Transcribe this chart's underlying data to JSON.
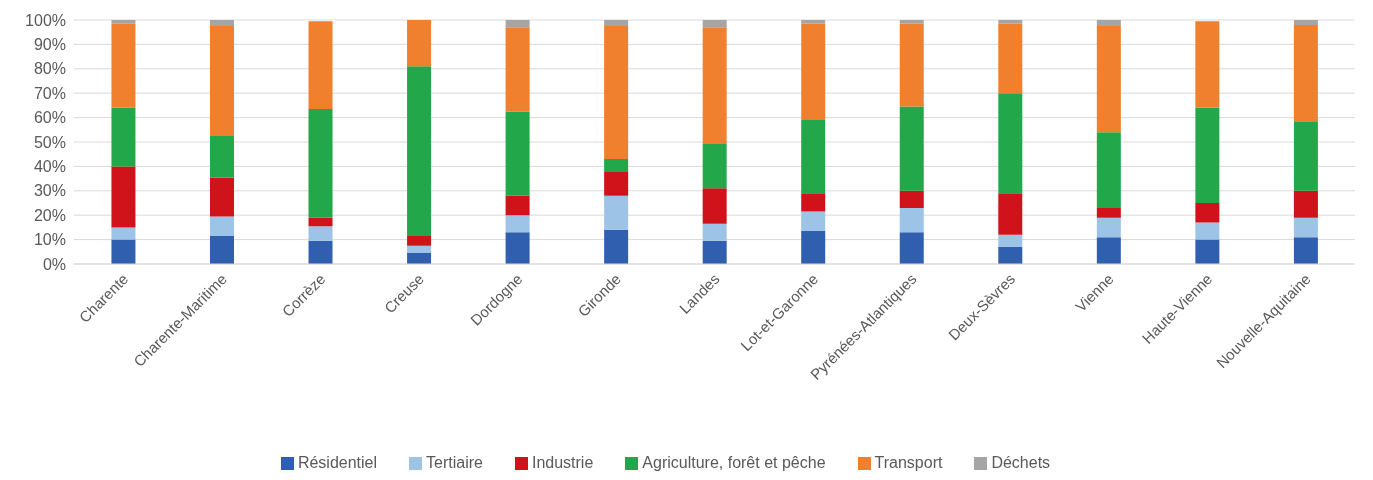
{
  "chart_data": {
    "type": "bar",
    "stacked": true,
    "categories": [
      "Charente",
      "Charente-Maritime",
      "Corrèze",
      "Creuse",
      "Dordogne",
      "Gironde",
      "Landes",
      "Lot-et-Garonne",
      "Pyrénées-Atlantiques",
      "Deux-Sèvres",
      "Vienne",
      "Haute-Vienne",
      "Nouvelle-Aquitaine"
    ],
    "series": [
      {
        "name": "Résidentiel",
        "color": "#2f5fae",
        "values": [
          10,
          11.5,
          9.5,
          4.5,
          13,
          14,
          9.5,
          13.5,
          13,
          7,
          11,
          10,
          11
        ]
      },
      {
        "name": "Tertiaire",
        "color": "#9dc3e6",
        "values": [
          5,
          8,
          6,
          3,
          7,
          14,
          7,
          8,
          10,
          5,
          8,
          7,
          8
        ]
      },
      {
        "name": "Industrie",
        "color": "#d0121b",
        "values": [
          25,
          16,
          3.5,
          4,
          8,
          10,
          14.5,
          7.5,
          7,
          17,
          4,
          8,
          11
        ]
      },
      {
        "name": "Agriculture, forêt et pêche",
        "color": "#22a84a",
        "values": [
          24,
          17,
          44.5,
          69.5,
          34.5,
          5,
          18.5,
          30,
          34.5,
          41,
          31,
          39,
          28.5
        ]
      },
      {
        "name": "Transport",
        "color": "#f07f2e",
        "values": [
          34.5,
          45,
          36,
          19,
          34.5,
          54.5,
          47.5,
          39.5,
          34,
          28.5,
          43.5,
          35.5,
          39.5
        ]
      },
      {
        "name": "Déchets",
        "color": "#a5a5a5",
        "values": [
          1.5,
          2.5,
          null,
          null,
          3,
          2.5,
          3,
          1.5,
          1.5,
          1.5,
          2.5,
          null,
          2
        ]
      }
    ],
    "ylim": [
      0,
      100
    ],
    "yticks": [
      {
        "value": 0,
        "label": "0%"
      },
      {
        "value": 10,
        "label": "10%"
      },
      {
        "value": 20,
        "label": "20%"
      },
      {
        "value": 30,
        "label": "30%"
      },
      {
        "value": 40,
        "label": "40%"
      },
      {
        "value": 50,
        "label": "50%"
      },
      {
        "value": 60,
        "label": "60%"
      },
      {
        "value": 70,
        "label": "70%"
      },
      {
        "value": 80,
        "label": "80%"
      },
      {
        "value": 90,
        "label": "90%"
      },
      {
        "value": 100,
        "label": "100%"
      }
    ],
    "grid": "y",
    "legend": "bottom"
  }
}
